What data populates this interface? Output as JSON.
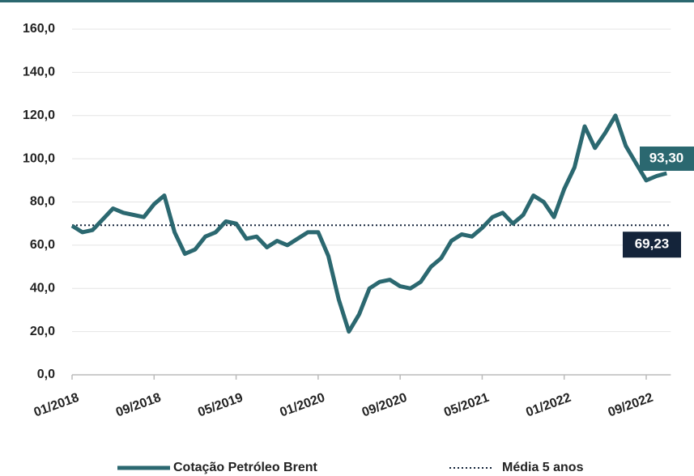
{
  "chart_data": {
    "type": "line",
    "x": [
      "01/2018",
      "02/2018",
      "03/2018",
      "04/2018",
      "05/2018",
      "06/2018",
      "07/2018",
      "08/2018",
      "09/2018",
      "10/2018",
      "11/2018",
      "12/2018",
      "01/2019",
      "02/2019",
      "03/2019",
      "04/2019",
      "05/2019",
      "06/2019",
      "07/2019",
      "08/2019",
      "09/2019",
      "10/2019",
      "11/2019",
      "12/2019",
      "01/2020",
      "02/2020",
      "03/2020",
      "04/2020",
      "05/2020",
      "06/2020",
      "07/2020",
      "08/2020",
      "09/2020",
      "10/2020",
      "11/2020",
      "12/2020",
      "01/2021",
      "02/2021",
      "03/2021",
      "04/2021",
      "05/2021",
      "06/2021",
      "07/2021",
      "08/2021",
      "09/2021",
      "10/2021",
      "11/2021",
      "12/2021",
      "01/2022",
      "02/2022",
      "03/2022",
      "04/2022",
      "05/2022",
      "06/2022",
      "07/2022",
      "08/2022",
      "09/2022",
      "10/2022",
      "11/2022"
    ],
    "series": [
      {
        "name": "Cotação Petróleo Brent",
        "color": "#2b6870",
        "values": [
          69,
          66,
          67,
          72,
          77,
          75,
          74,
          73,
          79,
          83,
          66,
          56,
          58,
          64,
          66,
          71,
          70,
          63,
          64,
          59,
          62,
          60,
          63,
          66,
          66,
          55,
          35,
          20,
          28,
          40,
          43,
          44,
          41,
          40,
          43,
          50,
          54,
          62,
          65,
          64,
          68,
          73,
          75,
          70,
          74,
          83,
          80,
          73,
          86,
          96,
          115,
          105,
          112,
          120,
          106,
          98,
          90,
          92,
          93.3
        ],
        "end_label": "93,30"
      }
    ],
    "reference": {
      "name": "Média 5 anos",
      "value": 69.23,
      "label": "69,23",
      "color": "#14243a"
    },
    "ylim": [
      0,
      160
    ],
    "yticks": [
      {
        "value": 0,
        "label": "0,0"
      },
      {
        "value": 20,
        "label": "20,0"
      },
      {
        "value": 40,
        "label": "40,0"
      },
      {
        "value": 60,
        "label": "60,0"
      },
      {
        "value": 80,
        "label": "80,0"
      },
      {
        "value": 100,
        "label": "100,0"
      },
      {
        "value": 120,
        "label": "120,0"
      },
      {
        "value": 140,
        "label": "140,0"
      },
      {
        "value": 160,
        "label": "160,0"
      }
    ],
    "xticks": [
      "01/2018",
      "09/2018",
      "05/2019",
      "01/2020",
      "09/2020",
      "05/2021",
      "01/2022",
      "09/2022"
    ],
    "grid": true
  }
}
